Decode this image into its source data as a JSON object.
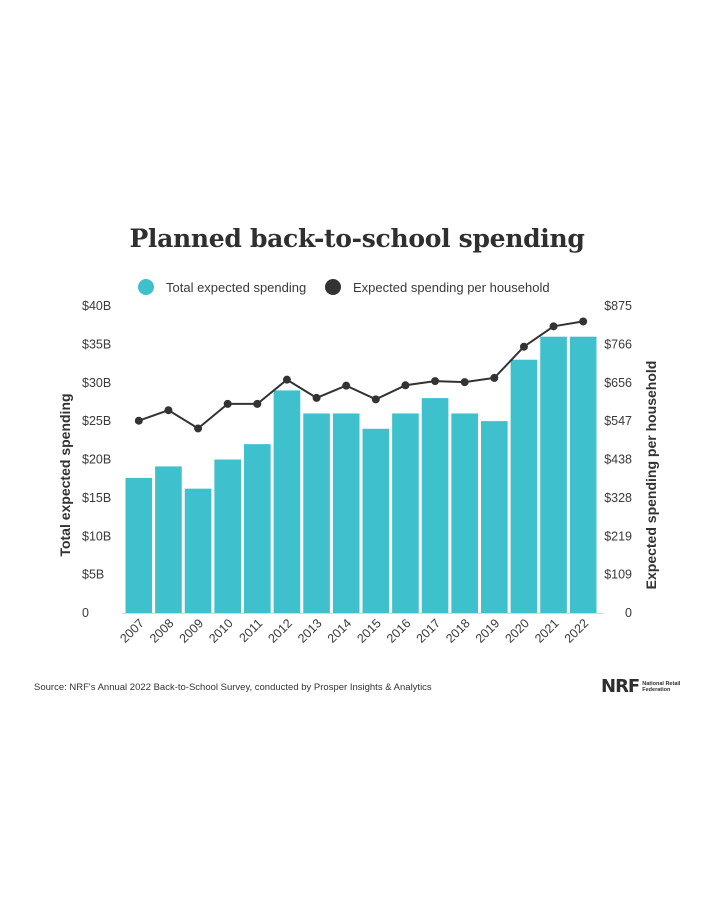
{
  "chart_data": {
    "type": "bar",
    "title": "Planned back-to-school spending",
    "categories": [
      "2007",
      "2008",
      "2009",
      "2010",
      "2011",
      "2012",
      "2013",
      "2014",
      "2015",
      "2016",
      "2017",
      "2018",
      "2019",
      "2020",
      "2021",
      "2022"
    ],
    "series": [
      {
        "name": "Total expected spending",
        "type": "bar",
        "axis": "left",
        "color": "#3ec1cd",
        "values": [
          17.6,
          19.1,
          16.2,
          20.0,
          22.0,
          29.0,
          26.0,
          26.0,
          24.0,
          26.0,
          28.0,
          26.0,
          25.0,
          33.0,
          36.0,
          36.0
        ]
      },
      {
        "name": "Expected spending per household",
        "type": "line",
        "axis": "right",
        "color": "#333333",
        "values": [
          548,
          578,
          526,
          596,
          596,
          665,
          613,
          648,
          609,
          649,
          661,
          658,
          670,
          759,
          817,
          831
        ]
      }
    ],
    "ylabel": "Total expected spending",
    "ylabel_right": "Expected spending per household",
    "ylim": [
      0,
      40
    ],
    "ylim_right": [
      0,
      875
    ],
    "yticks": [
      "0",
      "$5B",
      "$10B",
      "$15B",
      "$20B",
      "$25B",
      "$30B",
      "$35B",
      "$40B"
    ],
    "yticks_right": [
      "0",
      "$109",
      "$219",
      "$328",
      "$438",
      "$547",
      "$656",
      "$766",
      "$875"
    ],
    "legend_position": "top",
    "grid": false
  },
  "source": "Source: NRF's Annual 2022 Back-to-School Survey, conducted by Prosper Insights & Analytics",
  "logo": {
    "mark": "NRF",
    "text": "National Retail Federation"
  }
}
